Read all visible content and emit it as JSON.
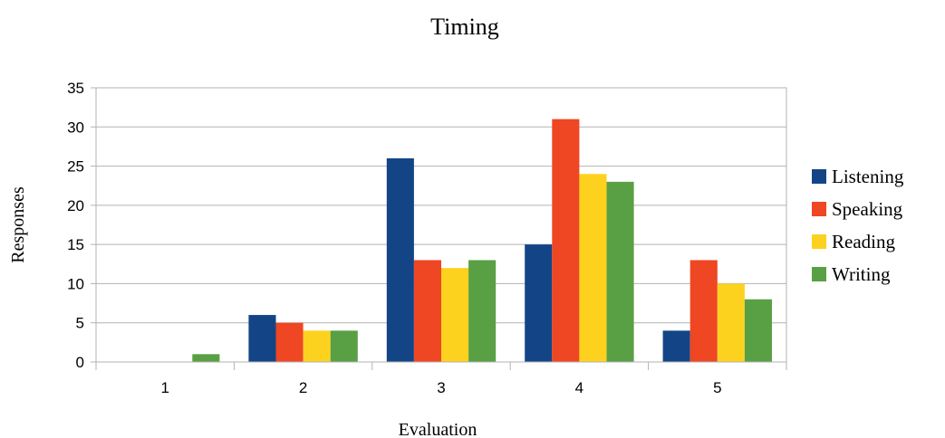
{
  "chart_data": {
    "type": "bar",
    "title": "Timing",
    "xlabel": "Evaluation",
    "ylabel": "Responses",
    "categories": [
      "1",
      "2",
      "3",
      "4",
      "5"
    ],
    "series": [
      {
        "name": "Listening",
        "values": [
          0,
          6,
          26,
          15,
          4
        ],
        "color": "#134586"
      },
      {
        "name": "Speaking",
        "values": [
          0,
          5,
          13,
          31,
          13
        ],
        "color": "#ef4623"
      },
      {
        "name": "Reading",
        "values": [
          0,
          4,
          12,
          24,
          10
        ],
        "color": "#fdd21f"
      },
      {
        "name": "Writing",
        "values": [
          1,
          4,
          13,
          23,
          8
        ],
        "color": "#59a044"
      }
    ],
    "ylim": [
      0,
      35
    ],
    "yticks": [
      0,
      5,
      10,
      15,
      20,
      25,
      30,
      35
    ],
    "grid": true,
    "legend": "right"
  }
}
